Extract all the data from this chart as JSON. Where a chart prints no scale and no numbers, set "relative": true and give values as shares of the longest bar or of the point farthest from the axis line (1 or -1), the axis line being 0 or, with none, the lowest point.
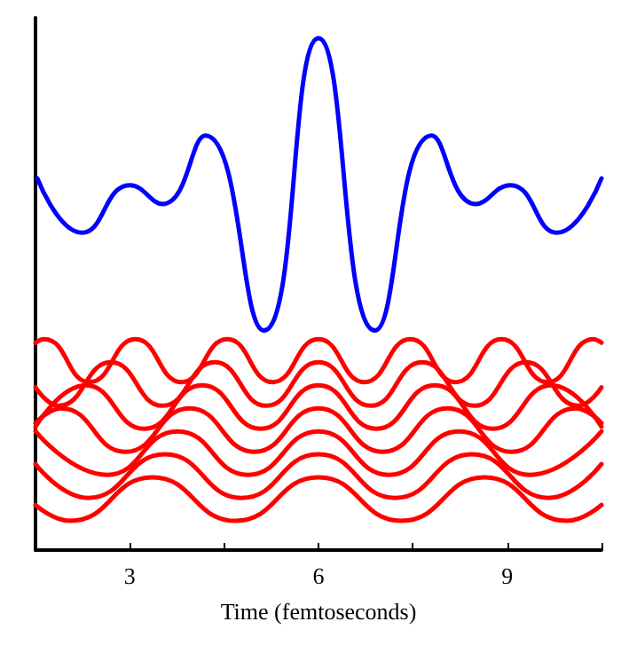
{
  "chart_data": {
    "type": "line",
    "relative": true,
    "xlabel": "Time (femtoseconds)",
    "xlim": [
      1.5,
      10.5
    ],
    "xticks": [
      {
        "value": 1.5,
        "label": null
      },
      3,
      {
        "value": 4.5,
        "label": null
      },
      6,
      {
        "value": 7.5,
        "label": null
      },
      9,
      {
        "value": 10.5,
        "label": null
      }
    ],
    "tick_labels": "x",
    "grid": false,
    "marker": "none",
    "line_style": "solid",
    "series": [
      {
        "color": "#0000ff",
        "x": [
          1.53,
          2.24,
          3.0,
          3.52,
          4.2,
          5.13,
          6.0,
          6.9,
          7.8,
          8.5,
          9.05,
          9.79,
          10.5
        ],
        "values": [
          0.726,
          0.62,
          0.713,
          0.676,
          0.81,
          0.429,
          1.0,
          0.429,
          0.81,
          0.676,
          0.713,
          0.62,
          0.726
        ]
      },
      {
        "color": "#ff0000",
        "x": [
          1.5,
          1.64,
          2.36,
          3.09,
          3.82,
          4.55,
          5.27,
          6,
          6.73,
          7.46,
          8.18,
          8.91,
          9.64,
          10.37,
          10.5
        ],
        "values": [
          0.405,
          0.412,
          0.328,
          0.412,
          0.328,
          0.412,
          0.328,
          0.412,
          0.328,
          0.412,
          0.328,
          0.412,
          0.328,
          0.412,
          0.405
        ]
      },
      {
        "color": "#ff0000",
        "x": [
          1.5,
          1.87,
          2.7,
          3.52,
          4.35,
          5.17,
          6,
          6.83,
          7.65,
          8.48,
          9.3,
          10.13,
          10.5
        ],
        "values": [
          0.318,
          0.282,
          0.367,
          0.282,
          0.367,
          0.282,
          0.367,
          0.282,
          0.367,
          0.282,
          0.367,
          0.282,
          0.318
        ]
      },
      {
        "color": "#ff0000",
        "x": [
          1.5,
          2.3,
          3.23,
          4.15,
          5.08,
          6,
          6.92,
          7.85,
          8.77,
          9.7,
          10.5
        ],
        "values": [
          0.241,
          0.322,
          0.237,
          0.322,
          0.237,
          0.322,
          0.237,
          0.322,
          0.237,
          0.322,
          0.241
        ]
      },
      {
        "color": "#ff0000",
        "x": [
          1.5,
          1.91,
          2.93,
          3.95,
          4.98,
          6,
          7.02,
          8.05,
          9.07,
          10.09,
          10.5
        ],
        "values": [
          0.248,
          0.277,
          0.192,
          0.277,
          0.192,
          0.277,
          0.192,
          0.277,
          0.192,
          0.277,
          0.248
        ]
      },
      {
        "color": "#ff0000",
        "x": [
          1.5,
          2.64,
          3.76,
          4.88,
          6,
          7.12,
          8.24,
          9.36,
          10.5
        ],
        "values": [
          0.232,
          0.147,
          0.232,
          0.147,
          0.232,
          0.147,
          0.232,
          0.147,
          0.232
        ]
      },
      {
        "color": "#ff0000",
        "x": [
          1.5,
          2.34,
          3.56,
          4.78,
          6,
          7.22,
          8.44,
          9.66,
          10.5
        ],
        "values": [
          0.168,
          0.102,
          0.187,
          0.102,
          0.187,
          0.102,
          0.187,
          0.102,
          0.168
        ]
      },
      {
        "color": "#ff0000",
        "x": [
          1.5,
          2.05,
          3.36,
          4.68,
          6,
          7.32,
          8.64,
          9.95,
          10.5
        ],
        "values": [
          0.088,
          0.057,
          0.142,
          0.057,
          0.142,
          0.057,
          0.142,
          0.057,
          0.088
        ]
      }
    ]
  }
}
